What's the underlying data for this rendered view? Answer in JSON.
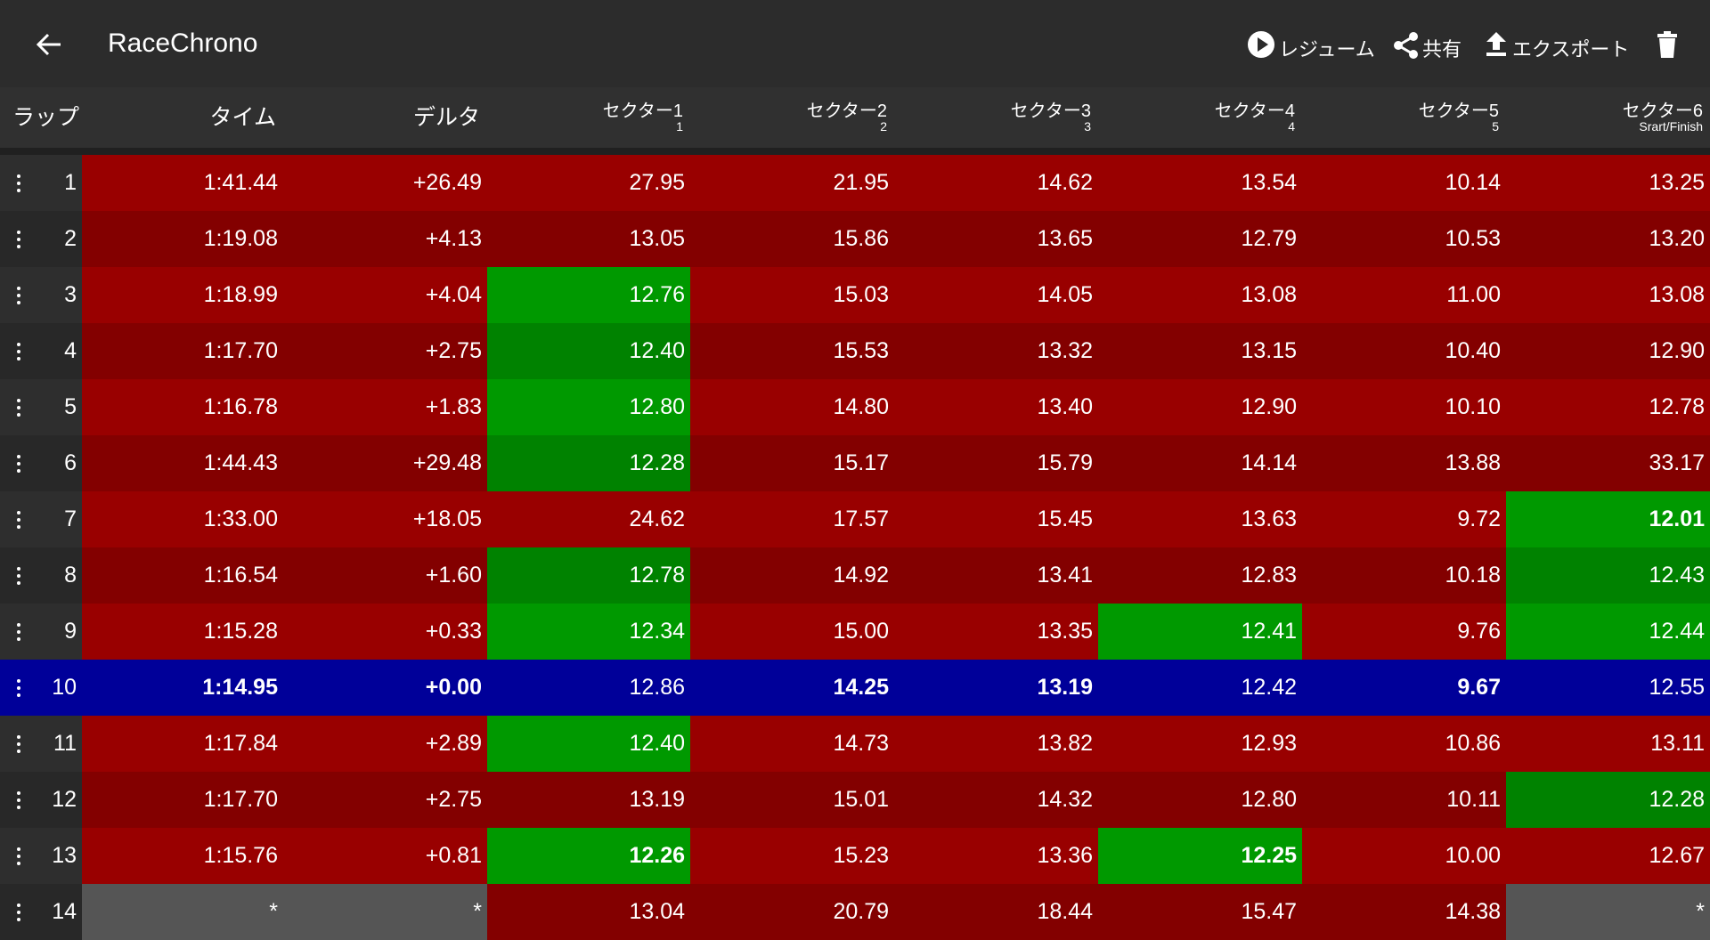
{
  "header": {
    "title": "RaceChrono",
    "actions": [
      "レジューム",
      "共有",
      "エクスポート"
    ]
  },
  "table": {
    "columns": [
      {
        "name": "ラップ"
      },
      {
        "name": "タイム"
      },
      {
        "name": "デルタ"
      },
      {
        "name": "セクター1",
        "sub": "1"
      },
      {
        "name": "セクター2",
        "sub": "2"
      },
      {
        "name": "セクター3",
        "sub": "3"
      },
      {
        "name": "セクター4",
        "sub": "4"
      },
      {
        "name": "セクター5",
        "sub": "5"
      },
      {
        "name": "セクター6",
        "sub": "Srart/Finish"
      }
    ],
    "rows": [
      [
        "1",
        "1:41.44",
        "+26.49",
        "27.95",
        "21.95",
        "14.62",
        "13.54",
        "10.14",
        "13.25"
      ],
      [
        "2",
        "1:19.08",
        "+4.13",
        "13.05",
        "15.86",
        "13.65",
        "12.79",
        "10.53",
        "13.20"
      ],
      [
        "3",
        "1:18.99",
        "+4.04",
        "12.76",
        "15.03",
        "14.05",
        "13.08",
        "11.00",
        "13.08"
      ],
      [
        "4",
        "1:17.70",
        "+2.75",
        "12.40",
        "15.53",
        "13.32",
        "13.15",
        "10.40",
        "12.90"
      ],
      [
        "5",
        "1:16.78",
        "+1.83",
        "12.80",
        "14.80",
        "13.40",
        "12.90",
        "10.10",
        "12.78"
      ],
      [
        "6",
        "1:44.43",
        "+29.48",
        "12.28",
        "15.17",
        "15.79",
        "14.14",
        "13.88",
        "33.17"
      ],
      [
        "7",
        "1:33.00",
        "+18.05",
        "24.62",
        "17.57",
        "15.45",
        "13.63",
        "9.72",
        "12.01"
      ],
      [
        "8",
        "1:16.54",
        "+1.60",
        "12.78",
        "14.92",
        "13.41",
        "12.83",
        "10.18",
        "12.43"
      ],
      [
        "9",
        "1:15.28",
        "+0.33",
        "12.34",
        "15.00",
        "13.35",
        "12.41",
        "9.76",
        "12.44"
      ],
      [
        "10",
        "1:14.95",
        "+0.00",
        "12.86",
        "14.25",
        "13.19",
        "12.42",
        "9.67",
        "12.55"
      ],
      [
        "11",
        "1:17.84",
        "+2.89",
        "12.40",
        "14.73",
        "13.82",
        "12.93",
        "10.86",
        "13.11"
      ],
      [
        "12",
        "1:17.70",
        "+2.75",
        "13.19",
        "15.01",
        "14.32",
        "12.80",
        "10.11",
        "12.28"
      ],
      [
        "13",
        "1:15.76",
        "+0.81",
        "12.26",
        "15.23",
        "13.36",
        "12.25",
        "10.00",
        "12.67"
      ],
      [
        "14",
        "*",
        "*",
        "13.04",
        "20.79",
        "18.44",
        "15.47",
        "14.38",
        "*"
      ]
    ]
  }
}
